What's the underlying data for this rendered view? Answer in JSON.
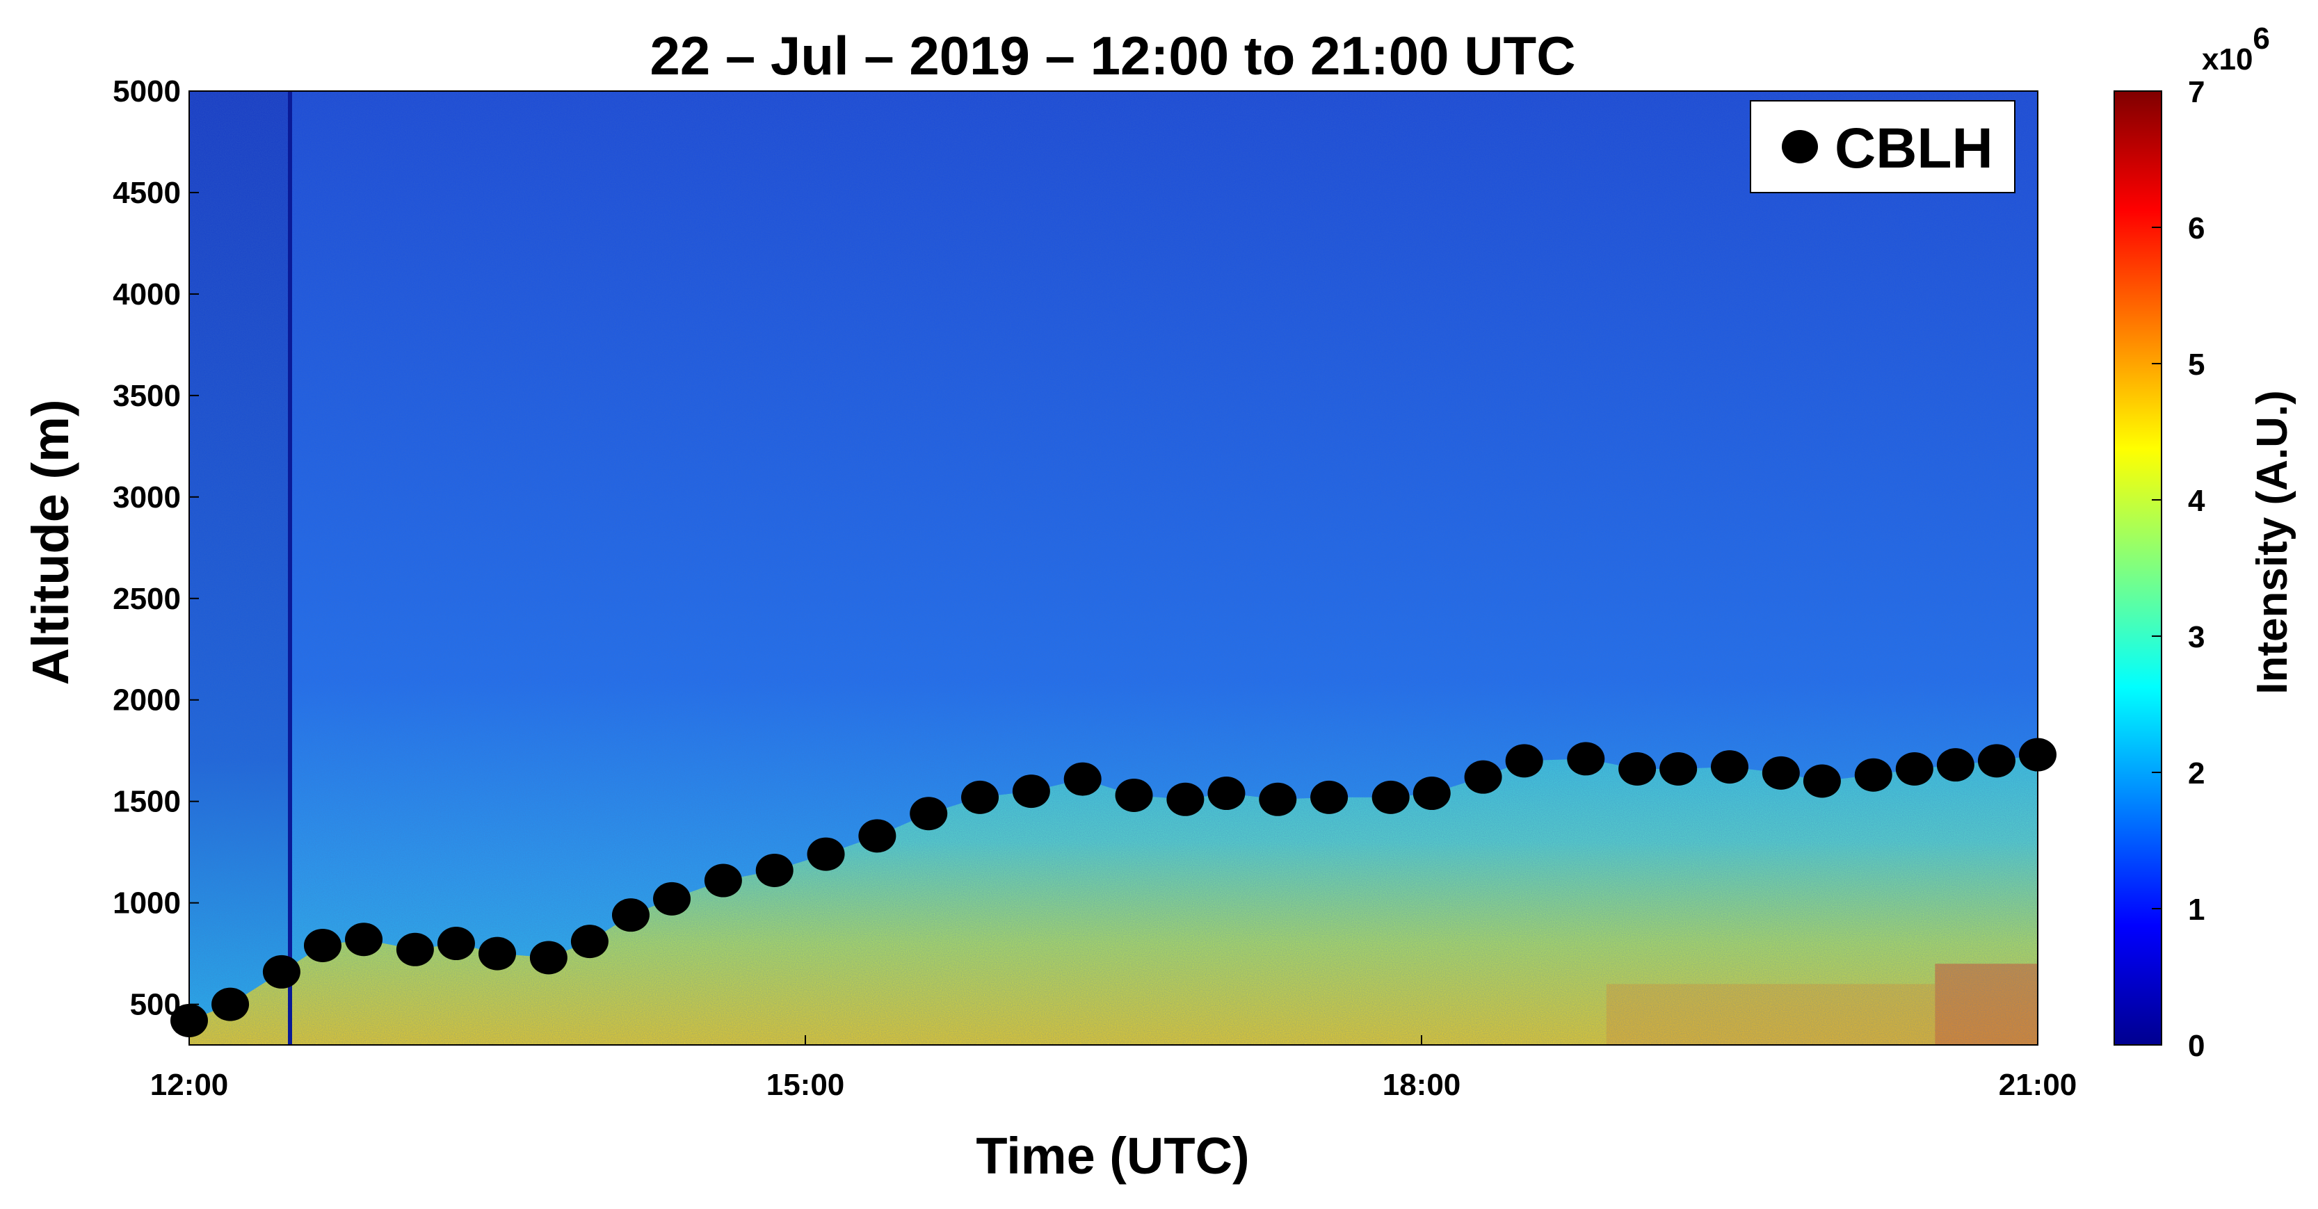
{
  "chart_data": {
    "type": "heatmap",
    "title": "22 – Jul – 2019 – 12:00 to 21:00 UTC",
    "xlabel": "Time (UTC)",
    "ylabel": "Altitude (m)",
    "xlim": [
      12,
      21
    ],
    "ylim": [
      300,
      5000
    ],
    "x_ticks": [
      12,
      15,
      18,
      21
    ],
    "x_tick_labels": [
      "12:00",
      "15:00",
      "18:00",
      "21:00"
    ],
    "y_ticks": [
      500,
      1000,
      1500,
      2000,
      2500,
      3000,
      3500,
      4000,
      4500,
      5000
    ],
    "y_tick_labels": [
      "500",
      "1000",
      "1500",
      "2000",
      "2500",
      "3000",
      "3500",
      "4000",
      "4500",
      "5000"
    ],
    "colorbar": {
      "label": "Intensity (A.U.)",
      "range": [
        0,
        7
      ],
      "ticks": [
        0,
        1,
        2,
        3,
        4,
        5,
        6,
        7
      ],
      "tick_labels": [
        "0",
        "1",
        "2",
        "3",
        "4",
        "5",
        "6",
        "7"
      ],
      "exponent_label": "x10",
      "exponent_power": "6",
      "colormap": "jet"
    },
    "legend": {
      "position": "top-right",
      "entries": [
        "CBLH"
      ]
    },
    "series": [
      {
        "name": "CBLH",
        "marker": "filled-ellipse",
        "color": "#000000",
        "points": [
          {
            "x": 12.0,
            "y": 420
          },
          {
            "x": 12.2,
            "y": 500
          },
          {
            "x": 12.45,
            "y": 660
          },
          {
            "x": 12.65,
            "y": 790
          },
          {
            "x": 12.85,
            "y": 820
          },
          {
            "x": 13.1,
            "y": 770
          },
          {
            "x": 13.3,
            "y": 800
          },
          {
            "x": 13.5,
            "y": 750
          },
          {
            "x": 13.75,
            "y": 730
          },
          {
            "x": 13.95,
            "y": 810
          },
          {
            "x": 14.15,
            "y": 940
          },
          {
            "x": 14.35,
            "y": 1020
          },
          {
            "x": 14.6,
            "y": 1110
          },
          {
            "x": 14.85,
            "y": 1160
          },
          {
            "x": 15.1,
            "y": 1240
          },
          {
            "x": 15.35,
            "y": 1330
          },
          {
            "x": 15.6,
            "y": 1440
          },
          {
            "x": 15.85,
            "y": 1520
          },
          {
            "x": 16.1,
            "y": 1550
          },
          {
            "x": 16.35,
            "y": 1610
          },
          {
            "x": 16.6,
            "y": 1530
          },
          {
            "x": 16.85,
            "y": 1510
          },
          {
            "x": 17.05,
            "y": 1540
          },
          {
            "x": 17.3,
            "y": 1510
          },
          {
            "x": 17.55,
            "y": 1520
          },
          {
            "x": 17.85,
            "y": 1520
          },
          {
            "x": 18.05,
            "y": 1540
          },
          {
            "x": 18.3,
            "y": 1620
          },
          {
            "x": 18.5,
            "y": 1700
          },
          {
            "x": 18.8,
            "y": 1710
          },
          {
            "x": 19.05,
            "y": 1660
          },
          {
            "x": 19.25,
            "y": 1660
          },
          {
            "x": 19.5,
            "y": 1670
          },
          {
            "x": 19.75,
            "y": 1640
          },
          {
            "x": 19.95,
            "y": 1600
          },
          {
            "x": 20.2,
            "y": 1630
          },
          {
            "x": 20.4,
            "y": 1660
          },
          {
            "x": 20.6,
            "y": 1680
          },
          {
            "x": 20.8,
            "y": 1700
          },
          {
            "x": 21.0,
            "y": 1730
          }
        ]
      }
    ]
  }
}
